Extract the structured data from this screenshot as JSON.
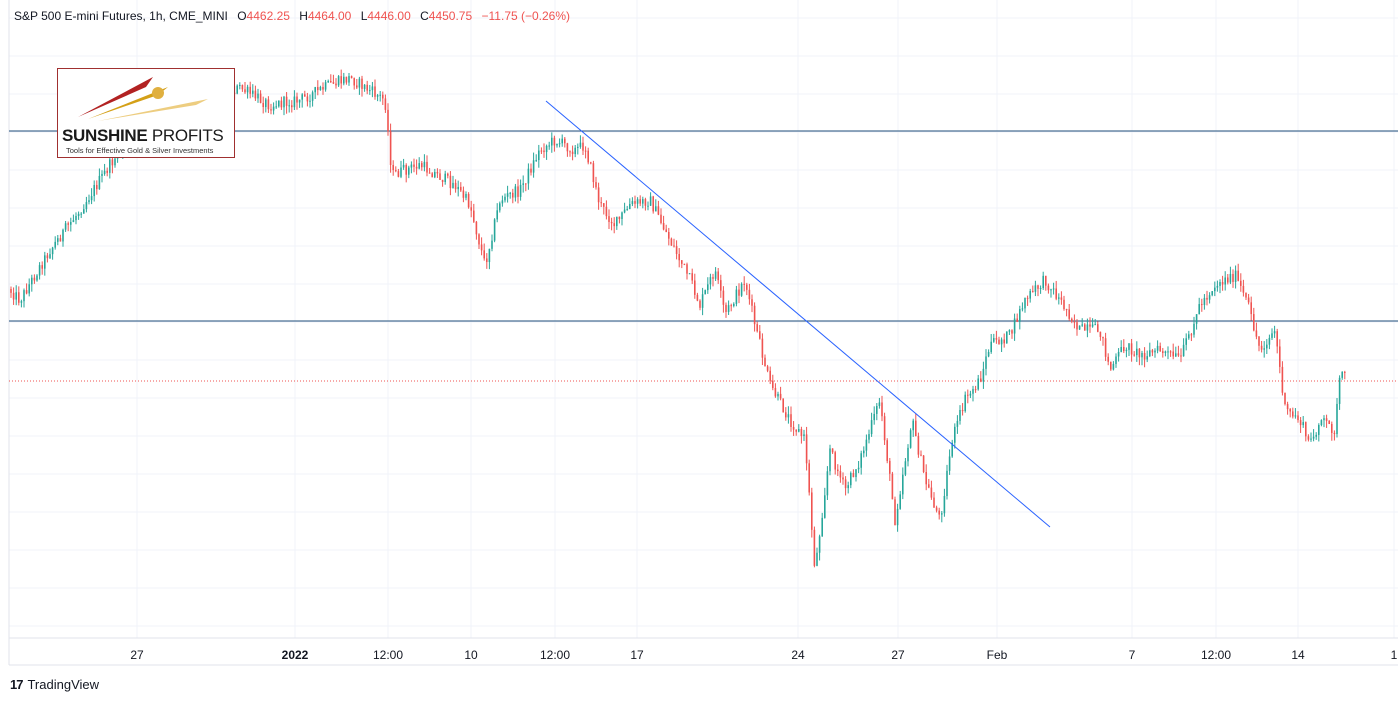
{
  "legend": {
    "symbol": "S&P 500 E-mini Futures, 1h, CME_MINI",
    "open_key": "O",
    "open": "4462.25",
    "high_key": "H",
    "high": "4464.00",
    "low_key": "L",
    "low": "4446.00",
    "close_key": "C",
    "close": "4450.75",
    "change": "−11.75 (−0.26%)"
  },
  "logo": {
    "title_bold": "SUNSHINE",
    "title_thin": "PROFITS",
    "subtitle": "Tools for Effective Gold & Silver Investments"
  },
  "footer": {
    "brand": "TradingView",
    "mark": "17"
  },
  "colors": {
    "up": "#26a69a",
    "down": "#ef5350",
    "level": "#1f4e79",
    "trend": "#2962ff",
    "price_line": "#ef5350"
  },
  "chart_data": {
    "type": "candlestick",
    "x_tick_labels": [
      {
        "label": "27",
        "bold": false
      },
      {
        "label": "2022",
        "bold": true
      },
      {
        "label": "12:00",
        "bold": false
      },
      {
        "label": "10",
        "bold": false
      },
      {
        "label": "12:00",
        "bold": false
      },
      {
        "label": "17",
        "bold": false
      },
      {
        "label": "24",
        "bold": false
      },
      {
        "label": "27",
        "bold": false
      },
      {
        "label": "Feb",
        "bold": false
      },
      {
        "label": "7",
        "bold": false
      },
      {
        "label": "12:00",
        "bold": false
      },
      {
        "label": "14",
        "bold": false
      },
      {
        "label": "1",
        "bold": false
      }
    ],
    "horizontal_levels": [
      "resistance",
      "support"
    ],
    "current_price_line": "4450.75",
    "trendline": "descending",
    "path_anchors": [
      [
        0,
        280
      ],
      [
        20,
        300
      ],
      [
        50,
        250
      ],
      [
        80,
        210
      ],
      [
        120,
        150
      ],
      [
        160,
        120
      ],
      [
        200,
        100
      ],
      [
        240,
        88
      ],
      [
        270,
        105
      ],
      [
        300,
        100
      ],
      [
        330,
        85
      ],
      [
        350,
        78
      ],
      [
        385,
        100
      ],
      [
        392,
        175
      ],
      [
        420,
        165
      ],
      [
        455,
        185
      ],
      [
        470,
        205
      ],
      [
        485,
        265
      ],
      [
        500,
        200
      ],
      [
        520,
        190
      ],
      [
        540,
        150
      ],
      [
        555,
        140
      ],
      [
        575,
        150
      ],
      [
        585,
        145
      ],
      [
        600,
        205
      ],
      [
        615,
        225
      ],
      [
        630,
        205
      ],
      [
        650,
        200
      ],
      [
        670,
        240
      ],
      [
        690,
        280
      ],
      [
        700,
        305
      ],
      [
        715,
        270
      ],
      [
        725,
        315
      ],
      [
        745,
        280
      ],
      [
        755,
        325
      ],
      [
        770,
        385
      ],
      [
        790,
        420
      ],
      [
        805,
        440
      ],
      [
        815,
        570
      ],
      [
        830,
        450
      ],
      [
        845,
        490
      ],
      [
        860,
        460
      ],
      [
        880,
        400
      ],
      [
        895,
        520
      ],
      [
        912,
        420
      ],
      [
        925,
        480
      ],
      [
        940,
        520
      ],
      [
        952,
        440
      ],
      [
        965,
        400
      ],
      [
        980,
        380
      ],
      [
        990,
        345
      ],
      [
        1010,
        335
      ],
      [
        1025,
        300
      ],
      [
        1045,
        280
      ],
      [
        1060,
        300
      ],
      [
        1080,
        330
      ],
      [
        1100,
        330
      ],
      [
        1110,
        370
      ],
      [
        1125,
        345
      ],
      [
        1140,
        355
      ],
      [
        1160,
        350
      ],
      [
        1180,
        360
      ],
      [
        1200,
        305
      ],
      [
        1215,
        285
      ],
      [
        1235,
        275
      ],
      [
        1248,
        305
      ],
      [
        1260,
        350
      ],
      [
        1275,
        330
      ],
      [
        1285,
        410
      ],
      [
        1300,
        420
      ],
      [
        1310,
        445
      ],
      [
        1320,
        420
      ],
      [
        1335,
        430
      ],
      [
        1340,
        375
      ],
      [
        1345,
        378
      ]
    ]
  }
}
